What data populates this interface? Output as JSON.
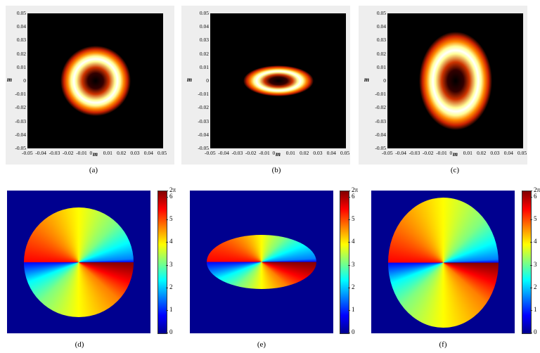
{
  "captions": [
    "(a)",
    "(b)",
    "(c)",
    "(d)",
    "(e)",
    "(f)"
  ],
  "axes": {
    "axis_label": "m",
    "x_ticks": [
      "-0.05",
      "-0.04",
      "-0.03",
      "-0.02",
      "-0.01",
      "0",
      "0.01",
      "0.02",
      "0.03",
      "0.04",
      "0.05"
    ],
    "y_ticks": [
      "0.05",
      "0.04",
      "0.03",
      "0.02",
      "0.01",
      "0",
      "-0.01",
      "-0.02",
      "-0.03",
      "-0.04",
      "-0.05"
    ]
  },
  "colorbar": {
    "ticks": [
      "2π",
      "6",
      "5",
      "4",
      "3",
      "2",
      "1",
      "0"
    ]
  },
  "figure": {
    "top_row": "intensity profiles of ring-shaped beams",
    "bottom_row": "phase distributions",
    "intensity_colormap": "hot",
    "phase_colormap": "jet",
    "phase_background": "#00008f"
  }
}
